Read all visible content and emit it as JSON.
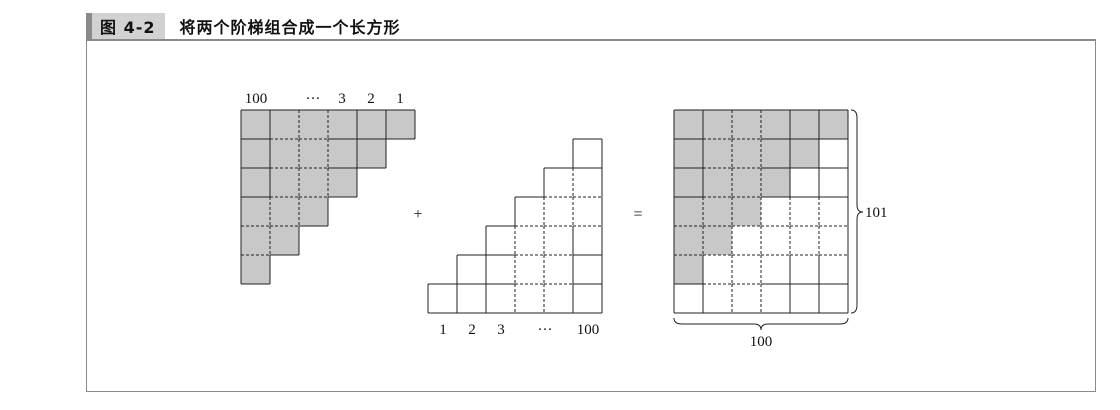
{
  "caption": {
    "label": "图 4-2",
    "title": "将两个阶梯组合成一个长方形"
  },
  "left_staircase": {
    "top_labels": [
      "100",
      "···",
      "3",
      "2",
      "1"
    ]
  },
  "right_staircase": {
    "bottom_labels": [
      "1",
      "2",
      "3",
      "···",
      "100"
    ]
  },
  "operators": {
    "plus": "+",
    "equals": "="
  },
  "rectangle": {
    "height_label": "101",
    "width_label": "100"
  },
  "colors": {
    "shaded": "#c8c8c8",
    "line": "#222222",
    "frame": "#8a8a8a"
  }
}
